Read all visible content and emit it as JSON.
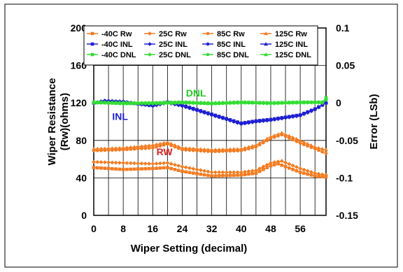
{
  "chart_data": {
    "type": "line",
    "xlabel": "Wiper Setting (decimal)",
    "ylabel_line1": "Wiper Resistance",
    "ylabel_line2": "(Rw)(ohms)",
    "y2label": "Error (LSb)",
    "xlim": [
      0,
      63
    ],
    "ylim": [
      0,
      200
    ],
    "y2lim": [
      -0.15,
      0.1
    ],
    "x_ticks": [
      "0",
      "8",
      "16",
      "24",
      "32",
      "40",
      "48",
      "56"
    ],
    "y_ticks": [
      "0",
      "40",
      "80",
      "120",
      "160",
      "200"
    ],
    "y2_ticks": [
      "-0.15",
      "-0.1",
      "-0.05",
      "0",
      "0.05",
      "0.1"
    ],
    "grid": true,
    "legend_position": "top",
    "annotations": [
      {
        "text": "DNL",
        "x": 25,
        "y": 127,
        "color": "#22cc22"
      },
      {
        "text": "INL",
        "x": 5,
        "y": 102,
        "color": "#1f1fd2"
      },
      {
        "text": "RW",
        "x": 17,
        "y": 64,
        "color": "#e02020"
      }
    ],
    "colors": {
      "rw": "#f47b20",
      "inl": "#1f1fd2",
      "dnl": "#33dd33"
    },
    "markers": {
      "-40C": "square",
      "25C": "diamond",
      "85C": "circle",
      "125C": "triangle"
    },
    "series": [
      {
        "name": "-40C Rw",
        "group": "rw",
        "axis": "left",
        "points": [
          [
            0,
            51
          ],
          [
            8,
            49
          ],
          [
            16,
            50
          ],
          [
            20,
            51
          ],
          [
            24,
            47
          ],
          [
            32,
            42
          ],
          [
            40,
            43
          ],
          [
            44,
            45
          ],
          [
            48,
            53
          ],
          [
            50,
            55
          ],
          [
            56,
            46
          ],
          [
            60,
            42
          ],
          [
            63,
            41
          ]
        ]
      },
      {
        "name": "25C Rw",
        "group": "rw",
        "axis": "left",
        "points": [
          [
            0,
            57
          ],
          [
            8,
            56
          ],
          [
            16,
            55
          ],
          [
            20,
            56
          ],
          [
            24,
            52
          ],
          [
            32,
            46
          ],
          [
            40,
            46
          ],
          [
            44,
            48
          ],
          [
            48,
            56
          ],
          [
            51,
            58
          ],
          [
            56,
            50
          ],
          [
            60,
            45
          ],
          [
            63,
            43
          ]
        ]
      },
      {
        "name": "85C Rw",
        "group": "rw",
        "axis": "left",
        "points": [
          [
            0,
            69
          ],
          [
            8,
            70
          ],
          [
            16,
            72
          ],
          [
            20,
            76
          ],
          [
            24,
            70
          ],
          [
            32,
            68
          ],
          [
            40,
            69
          ],
          [
            44,
            73
          ],
          [
            48,
            82
          ],
          [
            51,
            86
          ],
          [
            56,
            77
          ],
          [
            60,
            71
          ],
          [
            63,
            66
          ]
        ]
      },
      {
        "name": "125C Rw",
        "group": "rw",
        "axis": "left",
        "points": [
          [
            0,
            71
          ],
          [
            8,
            72
          ],
          [
            16,
            75
          ],
          [
            20,
            78
          ],
          [
            24,
            72
          ],
          [
            32,
            70
          ],
          [
            40,
            71
          ],
          [
            44,
            75
          ],
          [
            48,
            84
          ],
          [
            51,
            88
          ],
          [
            56,
            80
          ],
          [
            60,
            73
          ],
          [
            63,
            70
          ]
        ]
      },
      {
        "name": "-40C INL",
        "group": "inl",
        "axis": "right",
        "points": [
          [
            0,
            0
          ],
          [
            3,
            0.002
          ],
          [
            8,
            0.001
          ],
          [
            16,
            -0.003
          ],
          [
            20,
            0.001
          ],
          [
            24,
            -0.003
          ],
          [
            32,
            -0.015
          ],
          [
            40,
            -0.027
          ],
          [
            44,
            -0.024
          ],
          [
            48,
            -0.022
          ],
          [
            56,
            -0.016
          ],
          [
            60,
            -0.008
          ],
          [
            63,
            0
          ]
        ]
      },
      {
        "name": "25C INL",
        "group": "inl",
        "axis": "right",
        "points": [
          [
            0,
            0
          ],
          [
            3,
            0.003
          ],
          [
            8,
            0.001
          ],
          [
            16,
            -0.004
          ],
          [
            20,
            0
          ],
          [
            24,
            -0.004
          ],
          [
            32,
            -0.016
          ],
          [
            40,
            -0.028
          ],
          [
            44,
            -0.025
          ],
          [
            48,
            -0.023
          ],
          [
            56,
            -0.017
          ],
          [
            60,
            -0.009
          ],
          [
            63,
            0
          ]
        ]
      },
      {
        "name": "85C INL",
        "group": "inl",
        "axis": "right",
        "points": [
          [
            0,
            0
          ],
          [
            3,
            0.003
          ],
          [
            8,
            0.002
          ],
          [
            16,
            -0.004
          ],
          [
            20,
            0.001
          ],
          [
            24,
            -0.004
          ],
          [
            32,
            -0.016
          ],
          [
            40,
            -0.028
          ],
          [
            44,
            -0.025
          ],
          [
            48,
            -0.023
          ],
          [
            56,
            -0.016
          ],
          [
            60,
            -0.008
          ],
          [
            63,
            0
          ]
        ]
      },
      {
        "name": "125C INL",
        "group": "inl",
        "axis": "right",
        "points": [
          [
            0,
            0
          ],
          [
            3,
            0.002
          ],
          [
            8,
            0.001
          ],
          [
            16,
            -0.003
          ],
          [
            20,
            0.002
          ],
          [
            24,
            -0.003
          ],
          [
            32,
            -0.015
          ],
          [
            40,
            -0.027
          ],
          [
            44,
            -0.024
          ],
          [
            48,
            -0.022
          ],
          [
            56,
            -0.016
          ],
          [
            60,
            -0.008
          ],
          [
            63,
            0
          ]
        ]
      },
      {
        "name": "-40C DNL",
        "group": "dnl",
        "axis": "right",
        "points": [
          [
            0,
            0.001
          ],
          [
            8,
            -0.001
          ],
          [
            16,
            0
          ],
          [
            24,
            0.001
          ],
          [
            32,
            -0.001
          ],
          [
            40,
            0.001
          ],
          [
            48,
            0
          ],
          [
            56,
            0.001
          ],
          [
            62,
            0.001
          ],
          [
            63,
            0.007
          ]
        ]
      },
      {
        "name": "25C DNL",
        "group": "dnl",
        "axis": "right",
        "points": [
          [
            0,
            0.001
          ],
          [
            8,
            0
          ],
          [
            16,
            -0.001
          ],
          [
            24,
            0.001
          ],
          [
            32,
            0
          ],
          [
            40,
            0.001
          ],
          [
            48,
            -0.001
          ],
          [
            56,
            0.001
          ],
          [
            62,
            0
          ],
          [
            63,
            0.005
          ]
        ]
      },
      {
        "name": "85C DNL",
        "group": "dnl",
        "axis": "right",
        "points": [
          [
            0,
            0
          ],
          [
            8,
            0
          ],
          [
            16,
            -0.001
          ],
          [
            24,
            0
          ],
          [
            32,
            -0.001
          ],
          [
            40,
            0
          ],
          [
            48,
            0
          ],
          [
            56,
            0
          ],
          [
            62,
            0.001
          ],
          [
            63,
            0.004
          ]
        ]
      },
      {
        "name": "125C DNL",
        "group": "dnl",
        "axis": "right",
        "points": [
          [
            0,
            0.001
          ],
          [
            8,
            0.001
          ],
          [
            16,
            0
          ],
          [
            24,
            0.001
          ],
          [
            32,
            0
          ],
          [
            40,
            0.001
          ],
          [
            48,
            0
          ],
          [
            56,
            0.001
          ],
          [
            62,
            0.001
          ],
          [
            63,
            0.006
          ]
        ]
      }
    ]
  }
}
